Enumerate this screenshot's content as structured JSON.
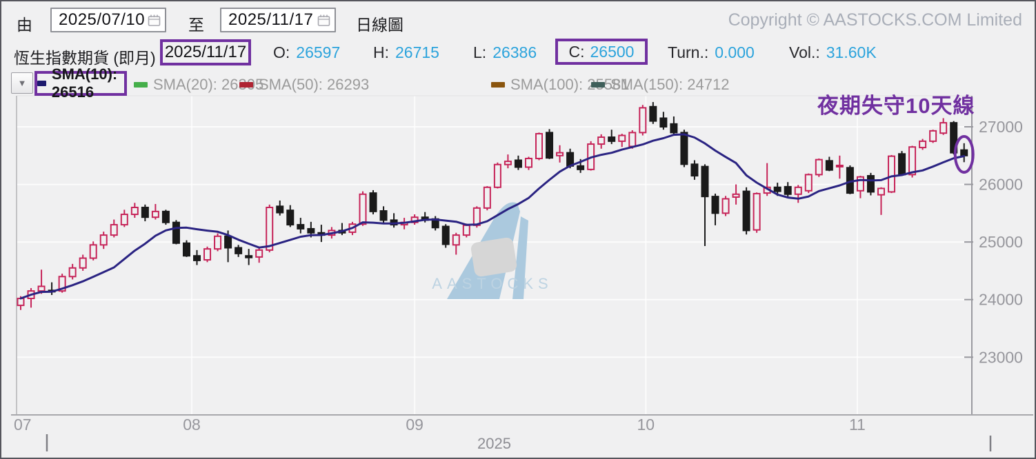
{
  "header": {
    "from_label": "由",
    "from_date": "2025/07/10",
    "to_label": "至",
    "to_date": "2025/11/17",
    "chart_type": "日線圖",
    "copyright": "Copyright © AASTOCKS.COM Limited"
  },
  "quote": {
    "name": "恆生指數期貨 (即月)",
    "date": "2025/11/17",
    "open_label": "O:",
    "open": "26597",
    "high_label": "H:",
    "high": "26715",
    "low_label": "L:",
    "low": "26386",
    "close_label": "C:",
    "close": "26500",
    "turnover_label": "Turn.:",
    "turnover": "0.000",
    "volume_label": "Vol.:",
    "volume": "31.60K"
  },
  "legend": {
    "items": [
      {
        "label": "SMA(10): 26516",
        "color": "#1d1a6e",
        "highlighted": true
      },
      {
        "label": "SMA(20): 26305",
        "color": "#45af4a"
      },
      {
        "label": "SMA(50): 26293",
        "color": "#af2433"
      },
      {
        "label": "SMA(100): 25581",
        "color": "#8a550e"
      },
      {
        "label": "SMA(150): 24712",
        "color": "#3f5f5a"
      }
    ]
  },
  "annotation": {
    "text": "夜期失守10天線",
    "color": "#7030a0"
  },
  "watermark": {
    "text": "AASTOCKS"
  },
  "colors": {
    "highlight": "#7030a0",
    "up": "#c62358",
    "down": "#1a1a1a",
    "sma10": "#2a2382"
  },
  "chart_data": {
    "type": "candlestick",
    "title": "恆生指數期貨 (即月) 日線圖",
    "y_axis": {
      "ticks": [
        27000,
        26000,
        25000,
        24000,
        23000
      ],
      "min": 21500,
      "max": 27550
    },
    "x_axis": {
      "ticks": [
        {
          "label": "07",
          "index": 0
        },
        {
          "label": "08",
          "index": 16.5
        },
        {
          "label": "09",
          "index": 38
        },
        {
          "label": "10",
          "index": 60.3
        },
        {
          "label": "11",
          "index": 80.7
        }
      ],
      "year_label": "2025"
    },
    "sma_period": 10,
    "sma_last_value": 26516,
    "circled_last_candle": true,
    "candles": [
      [
        23900,
        24060,
        23820,
        24020
      ],
      [
        24020,
        24200,
        23860,
        24150
      ],
      [
        24150,
        24520,
        24100,
        24230
      ],
      [
        24160,
        24300,
        24080,
        24150
      ],
      [
        24150,
        24450,
        24120,
        24400
      ],
      [
        24400,
        24620,
        24350,
        24550
      ],
      [
        24550,
        24780,
        24500,
        24720
      ],
      [
        24720,
        25010,
        24680,
        24950
      ],
      [
        24950,
        25180,
        24880,
        25120
      ],
      [
        25120,
        25390,
        25080,
        25300
      ],
      [
        25300,
        25560,
        25260,
        25480
      ],
      [
        25480,
        25680,
        25420,
        25600
      ],
      [
        25600,
        25650,
        25360,
        25430
      ],
      [
        25430,
        25660,
        25390,
        25530
      ],
      [
        25530,
        25560,
        25300,
        25340
      ],
      [
        25340,
        25380,
        24960,
        24980
      ],
      [
        24980,
        25030,
        24740,
        24760
      ],
      [
        24760,
        24860,
        24600,
        24680
      ],
      [
        24690,
        24920,
        24650,
        24880
      ],
      [
        24880,
        25150,
        24840,
        25100
      ],
      [
        25100,
        25200,
        24650,
        24900
      ],
      [
        24900,
        24950,
        24740,
        24800
      ],
      [
        24760,
        24880,
        24600,
        24730
      ],
      [
        24740,
        24900,
        24640,
        24860
      ],
      [
        24860,
        25650,
        24820,
        25600
      ],
      [
        25620,
        25720,
        25460,
        25510
      ],
      [
        25550,
        25640,
        25260,
        25300
      ],
      [
        25300,
        25420,
        25150,
        25230
      ],
      [
        25230,
        25350,
        25080,
        25160
      ],
      [
        25160,
        25300,
        25000,
        25120
      ],
      [
        25120,
        25260,
        25060,
        25200
      ],
      [
        25200,
        25330,
        25120,
        25160
      ],
      [
        25170,
        25350,
        25120,
        25310
      ],
      [
        25310,
        25880,
        25280,
        25830
      ],
      [
        25850,
        25900,
        25480,
        25530
      ],
      [
        25540,
        25620,
        25330,
        25380
      ],
      [
        25380,
        25500,
        25250,
        25300
      ],
      [
        25300,
        25420,
        25220,
        25340
      ],
      [
        25340,
        25480,
        25300,
        25430
      ],
      [
        25430,
        25520,
        25340,
        25380
      ],
      [
        25400,
        25450,
        25200,
        25250
      ],
      [
        25270,
        25310,
        24900,
        24960
      ],
      [
        24950,
        25160,
        24780,
        25120
      ],
      [
        25120,
        25320,
        25080,
        25290
      ],
      [
        25290,
        25620,
        25250,
        25590
      ],
      [
        25590,
        25970,
        25550,
        25950
      ],
      [
        25950,
        26380,
        25930,
        26345
      ],
      [
        26345,
        26520,
        26280,
        26400
      ],
      [
        26420,
        26500,
        26250,
        26300
      ],
      [
        26300,
        26480,
        26250,
        26450
      ],
      [
        26450,
        26900,
        26420,
        26880
      ],
      [
        26900,
        26960,
        26440,
        26460
      ],
      [
        26500,
        26680,
        26380,
        26550
      ],
      [
        26550,
        26620,
        26280,
        26320
      ],
      [
        26320,
        26440,
        26200,
        26260
      ],
      [
        26260,
        26750,
        26240,
        26700
      ],
      [
        26700,
        26870,
        26620,
        26820
      ],
      [
        26820,
        26950,
        26700,
        26750
      ],
      [
        26750,
        26880,
        26650,
        26850
      ],
      [
        26660,
        26940,
        26620,
        26900
      ],
      [
        26900,
        27380,
        26850,
        27330
      ],
      [
        27350,
        27430,
        27050,
        27100
      ],
      [
        27150,
        27260,
        26950,
        27000
      ],
      [
        27050,
        27180,
        26850,
        26900
      ],
      [
        26900,
        26950,
        26300,
        26350
      ],
      [
        26350,
        26420,
        26080,
        26150
      ],
      [
        26310,
        26350,
        24930,
        25790
      ],
      [
        25790,
        25840,
        25290,
        25500
      ],
      [
        25500,
        25800,
        25450,
        25750
      ],
      [
        25780,
        26000,
        25650,
        25830
      ],
      [
        25880,
        25950,
        25130,
        25200
      ],
      [
        25210,
        25860,
        25160,
        25840
      ],
      [
        25850,
        26370,
        25800,
        25950
      ],
      [
        25950,
        26030,
        25800,
        25880
      ],
      [
        25960,
        26040,
        25780,
        25830
      ],
      [
        25830,
        25990,
        25680,
        25950
      ],
      [
        25890,
        26190,
        25850,
        26170
      ],
      [
        26170,
        26450,
        26130,
        26430
      ],
      [
        26410,
        26480,
        26230,
        26250
      ],
      [
        26330,
        26500,
        26100,
        26330
      ],
      [
        26290,
        26330,
        25830,
        25850
      ],
      [
        25890,
        26150,
        25760,
        26130
      ],
      [
        26150,
        26200,
        25810,
        25870
      ],
      [
        25820,
        25950,
        25470,
        25930
      ],
      [
        25870,
        26510,
        25850,
        26490
      ],
      [
        26530,
        26580,
        26150,
        26170
      ],
      [
        26170,
        26670,
        26120,
        26650
      ],
      [
        26640,
        26790,
        26600,
        26750
      ],
      [
        26750,
        26950,
        26720,
        26930
      ],
      [
        26890,
        27150,
        26860,
        27070
      ],
      [
        27070,
        27100,
        26520,
        26550
      ],
      [
        26597,
        26715,
        26386,
        26500
      ]
    ]
  }
}
